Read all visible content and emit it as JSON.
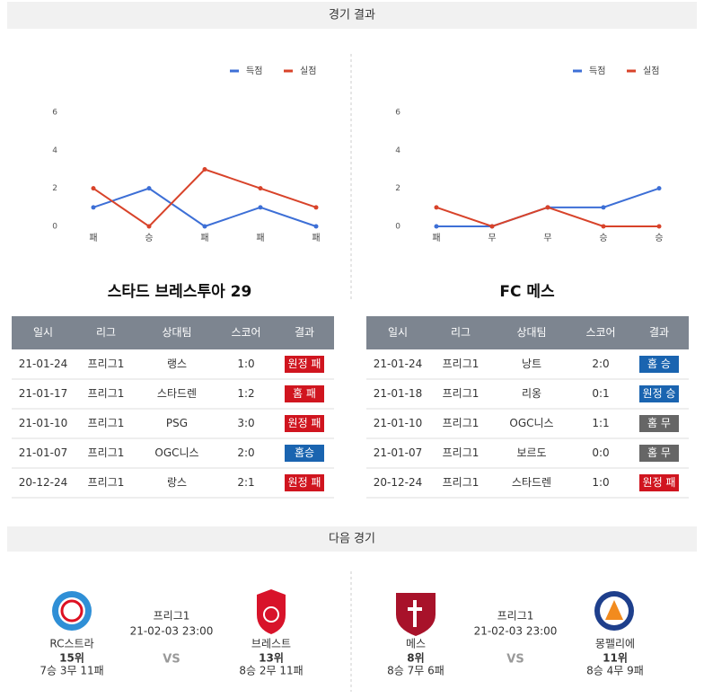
{
  "header": {
    "results_title": "경기 결과",
    "next_title": "다음 경기"
  },
  "chart_data": [
    {
      "type": "line",
      "categories": [
        "패",
        "승",
        "패",
        "패",
        "패"
      ],
      "series": [
        {
          "name": "득점",
          "color": "#3d6fd6",
          "values": [
            1,
            2,
            0,
            1,
            0
          ]
        },
        {
          "name": "실점",
          "color": "#d8432a",
          "values": [
            2,
            0,
            3,
            2,
            1
          ]
        }
      ],
      "ylim": [
        0,
        6
      ],
      "yticks": [
        0,
        2,
        4,
        6
      ]
    },
    {
      "type": "line",
      "categories": [
        "패",
        "무",
        "무",
        "승",
        "승"
      ],
      "series": [
        {
          "name": "득점",
          "color": "#3d6fd6",
          "values": [
            0,
            0,
            1,
            1,
            2
          ]
        },
        {
          "name": "실점",
          "color": "#d8432a",
          "values": [
            1,
            0,
            1,
            0,
            0
          ]
        }
      ],
      "ylim": [
        0,
        6
      ],
      "yticks": [
        0,
        2,
        4,
        6
      ]
    }
  ],
  "tables": [
    {
      "title": "스타드 브레스투아 29",
      "columns": [
        "일시",
        "리그",
        "상대팀",
        "스코어",
        "결과"
      ],
      "rows": [
        [
          "21-01-24",
          "프리그1",
          "랭스",
          "1:0",
          {
            "text": "원정 패",
            "color": "#d0151f"
          }
        ],
        [
          "21-01-17",
          "프리그1",
          "스타드렌",
          "1:2",
          {
            "text": "홈 패",
            "color": "#d0151f"
          }
        ],
        [
          "21-01-10",
          "프리그1",
          "PSG",
          "3:0",
          {
            "text": "원정 패",
            "color": "#d0151f"
          }
        ],
        [
          "21-01-07",
          "프리그1",
          "OGC니스",
          "2:0",
          {
            "text": "홈승",
            "color": "#1a64b0"
          }
        ],
        [
          "20-12-24",
          "프리그1",
          "랑스",
          "2:1",
          {
            "text": "원정 패",
            "color": "#d0151f"
          }
        ]
      ]
    },
    {
      "title": "FC 메스",
      "columns": [
        "일시",
        "리그",
        "상대팀",
        "스코어",
        "결과"
      ],
      "rows": [
        [
          "21-01-24",
          "프리그1",
          "낭트",
          "2:0",
          {
            "text": "홈 승",
            "color": "#1a64b0"
          }
        ],
        [
          "21-01-18",
          "프리그1",
          "리옹",
          "0:1",
          {
            "text": "원정 승",
            "color": "#1a64b0"
          }
        ],
        [
          "21-01-10",
          "프리그1",
          "OGC니스",
          "1:1",
          {
            "text": "홈 무",
            "color": "#666666"
          }
        ],
        [
          "21-01-07",
          "프리그1",
          "보르도",
          "0:0",
          {
            "text": "홈 무",
            "color": "#666666"
          }
        ],
        [
          "20-12-24",
          "프리그1",
          "스타드렌",
          "1:0",
          {
            "text": "원정 패",
            "color": "#d0151f"
          }
        ]
      ]
    }
  ],
  "next_matches": [
    {
      "league": "프리그1",
      "time": "21-02-03 23:00",
      "vs": "VS",
      "home": {
        "name": "RC스트라",
        "rank": "15위",
        "record": "7승 3무 11패"
      },
      "away": {
        "name": "브레스트",
        "rank": "13위",
        "record": "8승 2무 11패"
      }
    },
    {
      "league": "프리그1",
      "time": "21-02-03 23:00",
      "vs": "VS",
      "home": {
        "name": "메스",
        "rank": "8위",
        "record": "8승 7무 6패"
      },
      "away": {
        "name": "몽펠리에",
        "rank": "11위",
        "record": "8승 4무 9패"
      }
    }
  ]
}
